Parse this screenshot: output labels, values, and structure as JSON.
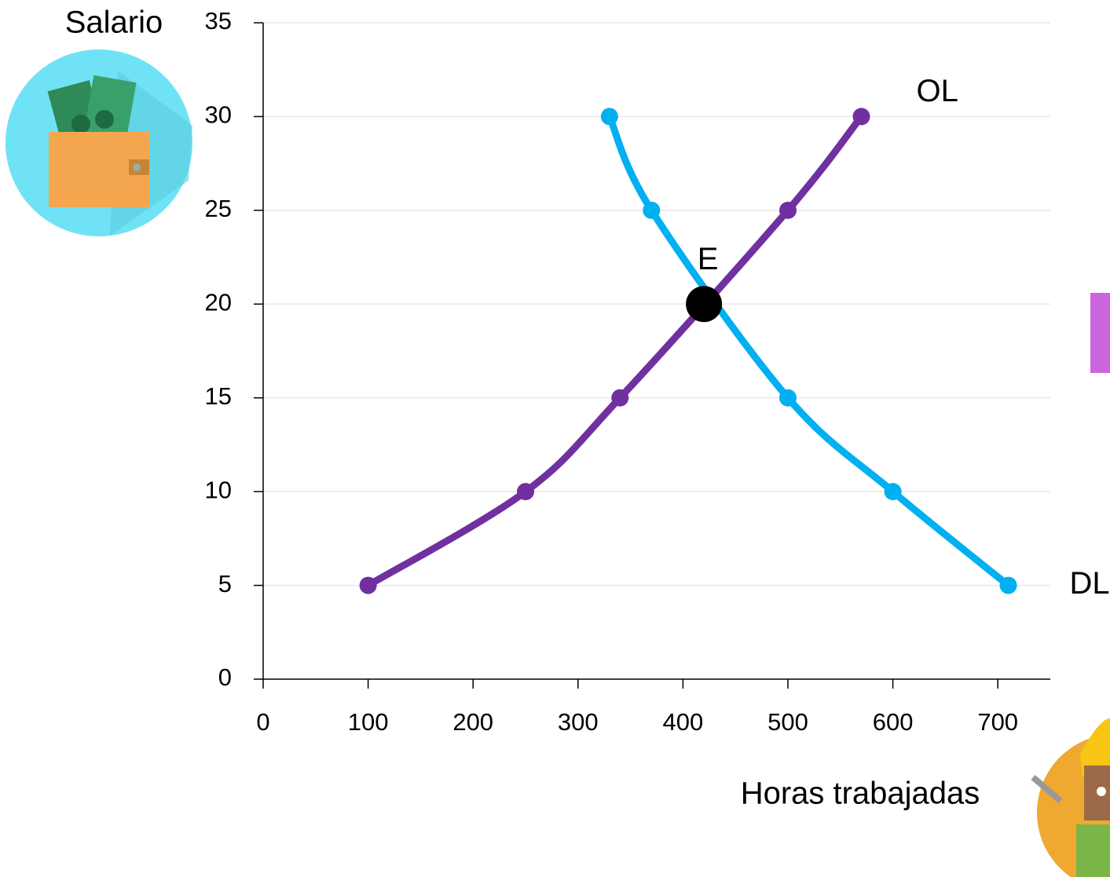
{
  "chart_data": {
    "type": "line",
    "y_label": "Salario",
    "x_label": "Horas trabajadas",
    "xlim": [
      0,
      750
    ],
    "ylim": [
      0,
      35
    ],
    "xticks": [
      0,
      100,
      200,
      300,
      400,
      500,
      600,
      700
    ],
    "yticks": [
      0,
      5,
      10,
      15,
      20,
      25,
      30,
      35
    ],
    "grid": true,
    "series": [
      {
        "name": "OL",
        "color": "#7030a0",
        "x": [
          100,
          250,
          340,
          500,
          570
        ],
        "values": [
          5,
          10,
          15,
          25,
          30
        ]
      },
      {
        "name": "DL",
        "color": "#00b0f0",
        "x": [
          330,
          370,
          500,
          600,
          710
        ],
        "values": [
          30,
          25,
          15,
          10,
          5
        ]
      }
    ],
    "annotations": [
      {
        "text": "E",
        "x": 420,
        "y": 20
      }
    ]
  }
}
